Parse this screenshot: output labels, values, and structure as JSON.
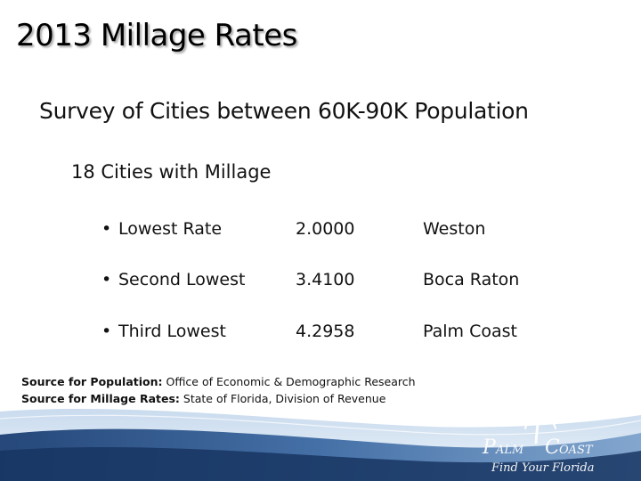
{
  "slide": {
    "title": "2013 Millage Rates",
    "subtitle": "Survey of Cities between 60K-90K Population",
    "count_line": "18 Cities with Millage",
    "rates": [
      {
        "label": "Lowest Rate",
        "value": "2.0000",
        "city": "Weston"
      },
      {
        "label": "Second Lowest",
        "value": "3.4100",
        "city": "Boca Raton"
      },
      {
        "label": "Third Lowest",
        "value": "4.2958",
        "city": "Palm Coast"
      }
    ],
    "sources": {
      "population_label": "Source for Population:",
      "population_text": "Office of Economic & Demographic Research",
      "millage_label": "Source for Millage Rates:",
      "millage_text": "State of Florida, Division of Revenue"
    }
  },
  "logo": {
    "name_part1": "PALM",
    "name_part2": "COAST",
    "tagline": "Find Your Florida"
  },
  "colors": {
    "band_dark": "#1c3f73",
    "band_mid": "#5a86b8",
    "band_light": "#c9dbee"
  }
}
